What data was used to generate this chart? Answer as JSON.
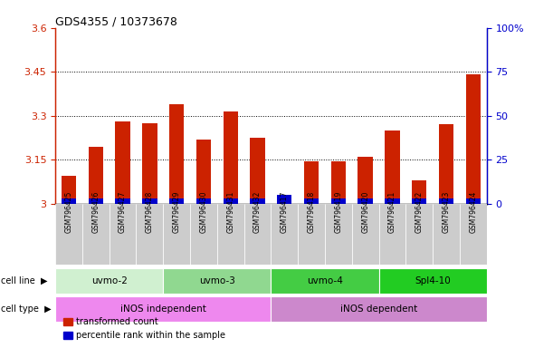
{
  "title": "GDS4355 / 10373678",
  "samples": [
    "GSM796425",
    "GSM796426",
    "GSM796427",
    "GSM796428",
    "GSM796429",
    "GSM796430",
    "GSM796431",
    "GSM796432",
    "GSM796417",
    "GSM796418",
    "GSM796419",
    "GSM796420",
    "GSM796421",
    "GSM796422",
    "GSM796423",
    "GSM796424"
  ],
  "transformed_count": [
    3.095,
    3.195,
    3.28,
    3.275,
    3.34,
    3.22,
    3.315,
    3.225,
    3.015,
    3.145,
    3.145,
    3.16,
    3.25,
    3.08,
    3.27,
    3.44
  ],
  "percentile_value": [
    3.018,
    3.018,
    3.018,
    3.018,
    3.018,
    3.018,
    3.018,
    3.018,
    3.03,
    3.018,
    3.018,
    3.018,
    3.018,
    3.018,
    3.018,
    3.018
  ],
  "ymin": 3.0,
  "ymax": 3.6,
  "y_ticks": [
    3.0,
    3.15,
    3.3,
    3.45,
    3.6
  ],
  "y_tick_labels": [
    "3",
    "3.15",
    "3.3",
    "3.45",
    "3.6"
  ],
  "right_y_ticks": [
    0,
    25,
    50,
    75,
    100
  ],
  "right_y_tick_labels": [
    "0",
    "25",
    "50",
    "75",
    "100%"
  ],
  "cell_line_groups": [
    {
      "label": "uvmo-2",
      "start": 0,
      "end": 3,
      "color": "#d0f0d0"
    },
    {
      "label": "uvmo-3",
      "start": 4,
      "end": 7,
      "color": "#90d890"
    },
    {
      "label": "uvmo-4",
      "start": 8,
      "end": 11,
      "color": "#44cc44"
    },
    {
      "label": "Spl4-10",
      "start": 12,
      "end": 15,
      "color": "#22cc22"
    }
  ],
  "cell_type_groups": [
    {
      "label": "iNOS independent",
      "start": 0,
      "end": 7,
      "color": "#ee88ee"
    },
    {
      "label": "iNOS dependent",
      "start": 8,
      "end": 15,
      "color": "#cc88cc"
    }
  ],
  "bar_color_red": "#cc2200",
  "bar_color_blue": "#0000cc",
  "bar_width": 0.55,
  "legend_red": "transformed count",
  "legend_blue": "percentile rank within the sample",
  "cell_line_label": "cell line",
  "cell_type_label": "cell type",
  "left_axis_color": "#cc2200",
  "right_axis_color": "#0000cc",
  "grid_color": "#000000",
  "xlabel_bg": "#cccccc",
  "background_color": "#ffffff"
}
